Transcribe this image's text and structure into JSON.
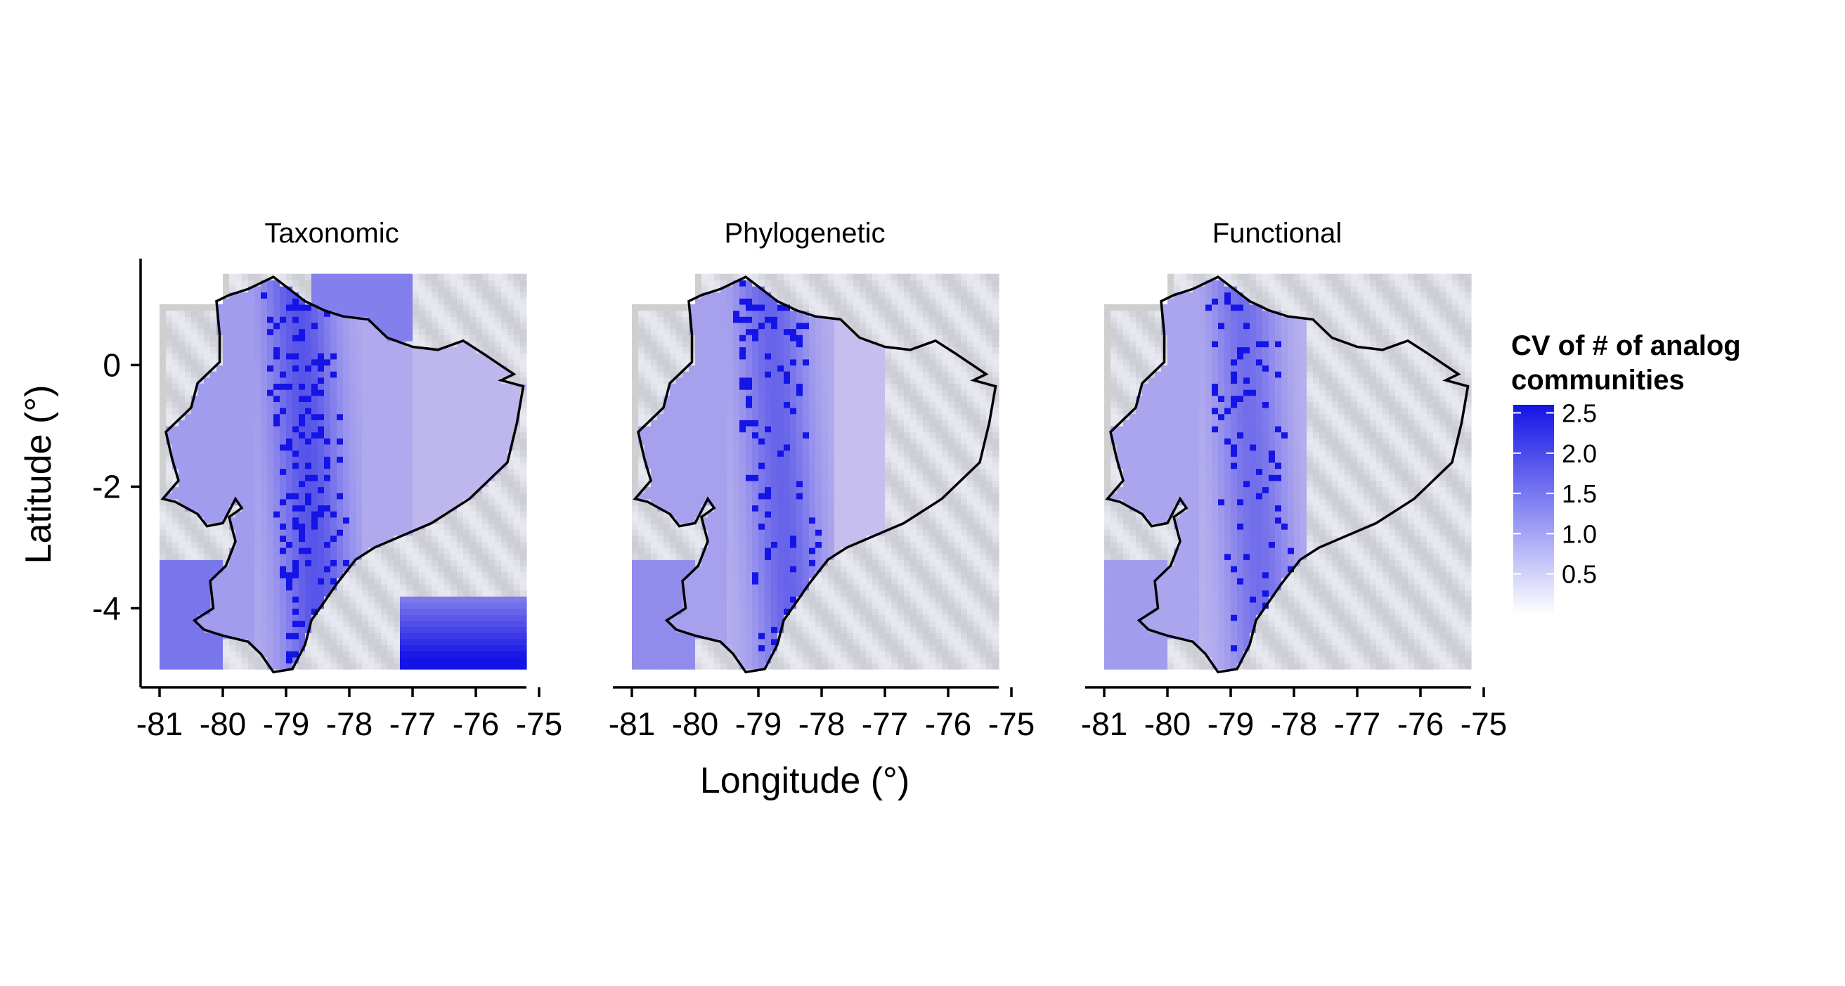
{
  "chart_data": {
    "type": "heatmap",
    "facets": [
      {
        "title": "Taxonomic",
        "intensity": 1.0
      },
      {
        "title": "Phylogenetic",
        "intensity": 0.7
      },
      {
        "title": "Functional",
        "intensity": 0.5
      }
    ],
    "xlabel": "Longitude (°)",
    "ylabel": "Latitude (°)",
    "x_ticks": [
      "-81",
      "-80",
      "-79",
      "-78",
      "-77",
      "-76",
      "-75"
    ],
    "x_tick_values": [
      -81,
      -80,
      -79,
      -78,
      -77,
      -76,
      -75
    ],
    "y_ticks": [
      "0",
      "-2",
      "-4"
    ],
    "y_tick_values": [
      0,
      -2,
      -4
    ],
    "xlim": [
      -81.3,
      -75.3
    ],
    "ylim": [
      -5.3,
      1.75
    ],
    "grid": false,
    "legend": {
      "title_lines": [
        "CV of # of analog",
        "communities"
      ],
      "placement": "right",
      "range": [
        0,
        2.6
      ],
      "ticks": [
        "2.5",
        "2.0",
        "1.5",
        "1.0",
        "0.5"
      ],
      "tick_values": [
        2.5,
        2.0,
        1.5,
        1.0,
        0.5
      ],
      "low_color": "#f4f0fb",
      "high_color": "#1414e6"
    },
    "colors": {
      "no_data": "#cfcfcf",
      "outline": "#000000",
      "high": "#1414e6"
    }
  }
}
